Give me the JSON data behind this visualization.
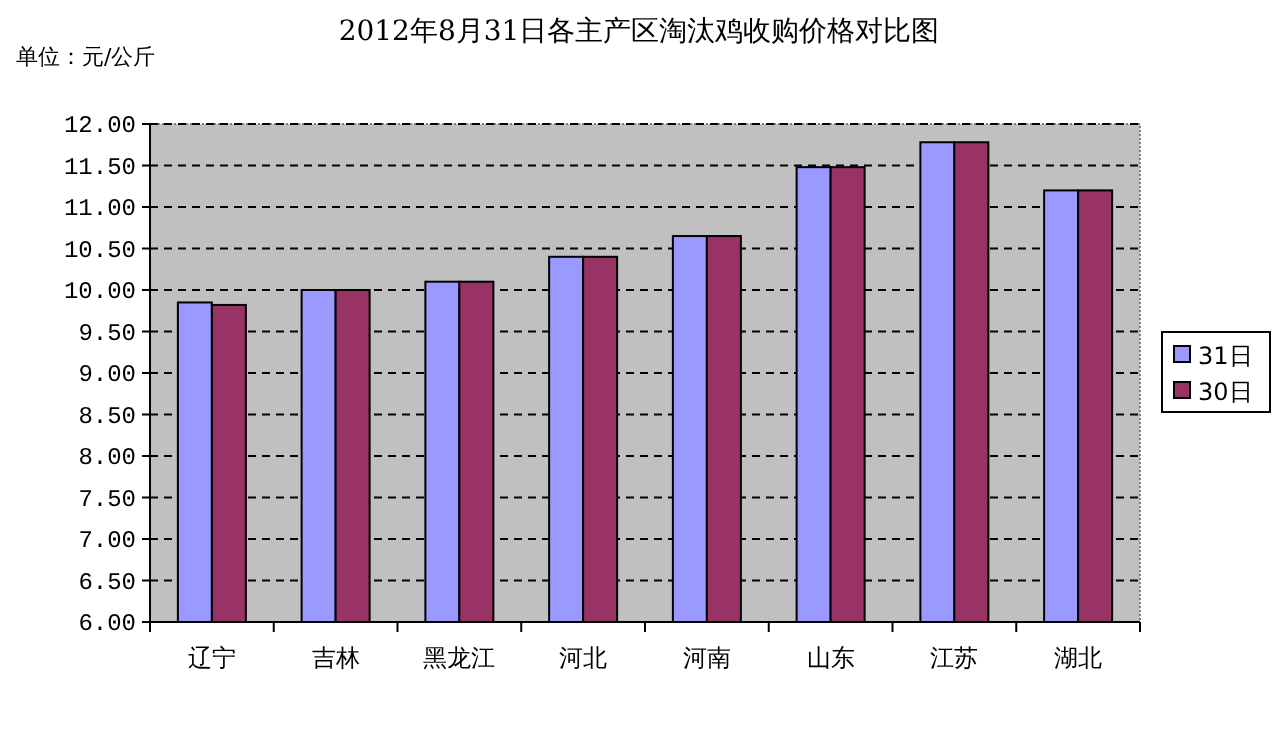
{
  "chart_data": {
    "type": "bar",
    "title": "2012年8月31日各主产区淘汰鸡收购价格对比图",
    "ylabel": "单位：元/公斤",
    "categories": [
      "辽宁",
      "吉林",
      "黑龙江",
      "河北",
      "河南",
      "山东",
      "江苏",
      "湖北"
    ],
    "series": [
      {
        "name": "31日",
        "color": "#9999ff",
        "values": [
          9.85,
          10.0,
          10.1,
          10.4,
          10.65,
          11.48,
          11.78,
          11.2
        ]
      },
      {
        "name": "30日",
        "color": "#993366",
        "values": [
          9.82,
          10.0,
          10.1,
          10.4,
          10.65,
          11.48,
          11.78,
          11.2
        ]
      }
    ],
    "ylim": [
      6,
      12
    ],
    "yticks": [
      {
        "value": 6,
        "label": "6.00"
      },
      {
        "value": 6.5,
        "label": "6.50"
      },
      {
        "value": 7,
        "label": "7.00"
      },
      {
        "value": 7.5,
        "label": "7.50"
      },
      {
        "value": 8,
        "label": "8.00"
      },
      {
        "value": 8.5,
        "label": "8.50"
      },
      {
        "value": 9,
        "label": "9.00"
      },
      {
        "value": 9.5,
        "label": "9.50"
      },
      {
        "value": 10,
        "label": "10.00"
      },
      {
        "value": 10.5,
        "label": "10.50"
      },
      {
        "value": 11,
        "label": "11.00"
      },
      {
        "value": 11.5,
        "label": "11.50"
      },
      {
        "value": 12,
        "label": "12.00"
      }
    ],
    "grid": "y",
    "legend": "right"
  }
}
